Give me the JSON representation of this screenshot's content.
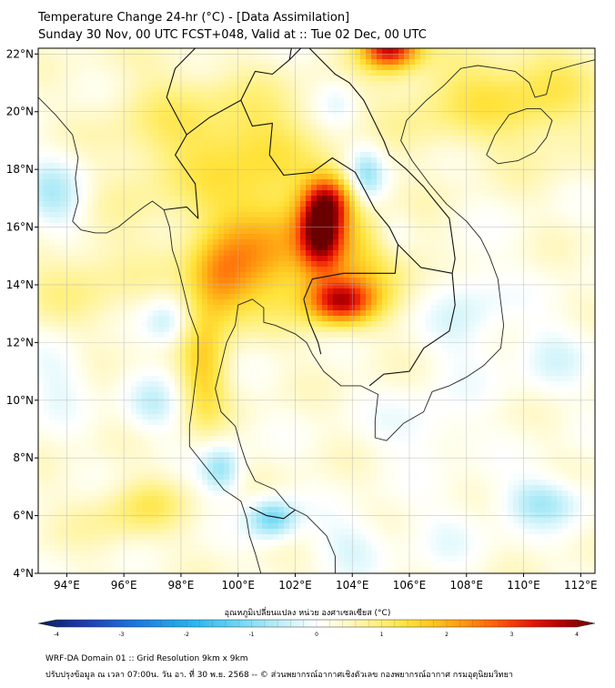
{
  "header": {
    "title": "Temperature Change 24-hr (°C) - [Data Assimilation]",
    "subtitle": "Sunday 30 Nov, 00 UTC FCST+048, Valid at :: Tue 02 Dec, 00 UTC"
  },
  "map": {
    "lon_range": [
      93,
      112.5
    ],
    "lat_range": [
      4,
      22.2
    ],
    "lon_ticks": [
      {
        "value": 94,
        "label": "94°E"
      },
      {
        "value": 96,
        "label": "96°E"
      },
      {
        "value": 98,
        "label": "98°E"
      },
      {
        "value": 100,
        "label": "100°E"
      },
      {
        "value": 102,
        "label": "102°E"
      },
      {
        "value": 104,
        "label": "104°E"
      },
      {
        "value": 106,
        "label": "106°E"
      },
      {
        "value": 108,
        "label": "108°E"
      },
      {
        "value": 110,
        "label": "110°E"
      },
      {
        "value": 112,
        "label": "112°E"
      }
    ],
    "lat_ticks": [
      {
        "value": 4,
        "label": "4°N"
      },
      {
        "value": 6,
        "label": "6°N"
      },
      {
        "value": 8,
        "label": "8°N"
      },
      {
        "value": 10,
        "label": "10°N"
      },
      {
        "value": 12,
        "label": "12°N"
      },
      {
        "value": 14,
        "label": "14°N"
      },
      {
        "value": 16,
        "label": "16°N"
      },
      {
        "value": 18,
        "label": "18°N"
      },
      {
        "value": 20,
        "label": "20°N"
      },
      {
        "value": 22,
        "label": "22°N"
      }
    ],
    "field_blobs": [
      {
        "lon": 102.9,
        "lat": 15.9,
        "val": 3.0,
        "sx": 0.55,
        "sy": 1.0
      },
      {
        "lon": 103.3,
        "lat": 17.0,
        "val": 1.6,
        "sx": 0.6,
        "sy": 0.6
      },
      {
        "lon": 103.6,
        "lat": 13.4,
        "val": 2.6,
        "sx": 0.8,
        "sy": 0.55
      },
      {
        "lon": 101.0,
        "lat": 15.3,
        "val": 1.6,
        "sx": 1.6,
        "sy": 1.5
      },
      {
        "lon": 99.3,
        "lat": 14.0,
        "val": 1.3,
        "sx": 0.8,
        "sy": 1.0
      },
      {
        "lon": 98.8,
        "lat": 11.0,
        "val": 1.2,
        "sx": 0.6,
        "sy": 1.4
      },
      {
        "lon": 105.3,
        "lat": 22.2,
        "val": 3.0,
        "sx": 0.7,
        "sy": 0.5
      },
      {
        "lon": 100.5,
        "lat": 19.0,
        "val": 0.9,
        "sx": 1.5,
        "sy": 1.3
      },
      {
        "lon": 104.5,
        "lat": 14.8,
        "val": 1.0,
        "sx": 1.3,
        "sy": 1.2
      },
      {
        "lon": 108.3,
        "lat": 20.5,
        "val": 0.8,
        "sx": 2.2,
        "sy": 1.3
      },
      {
        "lon": 97.5,
        "lat": 19.0,
        "val": 0.6,
        "sx": 1.6,
        "sy": 2.0
      },
      {
        "lon": 111.0,
        "lat": 20.5,
        "val": 0.5,
        "sx": 1.2,
        "sy": 1.5
      },
      {
        "lon": 94.5,
        "lat": 14.0,
        "val": 0.5,
        "sx": 1.5,
        "sy": 1.5
      },
      {
        "lon": 96.0,
        "lat": 6.0,
        "val": 0.5,
        "sx": 1.2,
        "sy": 0.8
      },
      {
        "lon": 104.5,
        "lat": 17.8,
        "val": -1.0,
        "sx": 0.45,
        "sy": 0.7
      },
      {
        "lon": 105.5,
        "lat": 15.8,
        "val": -0.5,
        "sx": 0.5,
        "sy": 0.6
      },
      {
        "lon": 101.2,
        "lat": 5.9,
        "val": -1.3,
        "sx": 0.6,
        "sy": 0.5
      },
      {
        "lon": 99.4,
        "lat": 7.6,
        "val": -1.0,
        "sx": 0.5,
        "sy": 0.6
      },
      {
        "lon": 97.5,
        "lat": 12.7,
        "val": -0.8,
        "sx": 0.6,
        "sy": 0.6
      },
      {
        "lon": 97.0,
        "lat": 9.8,
        "val": -0.6,
        "sx": 0.7,
        "sy": 0.7
      },
      {
        "lon": 93.6,
        "lat": 17.0,
        "val": -0.8,
        "sx": 0.8,
        "sy": 1.0
      },
      {
        "lon": 93.8,
        "lat": 11.0,
        "val": -0.5,
        "sx": 0.8,
        "sy": 1.0
      },
      {
        "lon": 110.7,
        "lat": 6.5,
        "val": -0.9,
        "sx": 1.0,
        "sy": 0.6
      },
      {
        "lon": 108.0,
        "lat": 13.0,
        "val": -0.5,
        "sx": 1.0,
        "sy": 1.5
      },
      {
        "lon": 106.5,
        "lat": 9.0,
        "val": -0.4,
        "sx": 1.2,
        "sy": 0.8
      },
      {
        "lon": 111.0,
        "lat": 11.5,
        "val": -0.4,
        "sx": 1.0,
        "sy": 1.0
      },
      {
        "lon": 104.0,
        "lat": 5.0,
        "val": -0.5,
        "sx": 1.0,
        "sy": 0.7
      },
      {
        "lon": 107.5,
        "lat": 5.5,
        "val": -0.3,
        "sx": 1.0,
        "sy": 0.8
      },
      {
        "lon": 103.5,
        "lat": 20.3,
        "val": -0.4,
        "sx": 0.5,
        "sy": 0.6
      },
      {
        "lon": 97.0,
        "lat": 6.5,
        "val": 0.4,
        "sx": 0.8,
        "sy": 0.6
      }
    ],
    "coastlines": [
      [
        [
          93,
          20.5
        ],
        [
          93.6,
          19.9
        ],
        [
          94.2,
          19.2
        ],
        [
          94.4,
          18.4
        ],
        [
          94.3,
          17.7
        ],
        [
          94.4,
          16.9
        ],
        [
          94.2,
          16.2
        ],
        [
          94.5,
          15.9
        ],
        [
          95.0,
          15.8
        ],
        [
          95.4,
          15.8
        ],
        [
          95.8,
          16.0
        ],
        [
          96.3,
          16.4
        ],
        [
          96.7,
          16.7
        ],
        [
          97.0,
          16.9
        ],
        [
          97.4,
          16.6
        ],
        [
          97.6,
          16.0
        ],
        [
          97.7,
          15.2
        ],
        [
          97.9,
          14.6
        ],
        [
          98.1,
          13.8
        ],
        [
          98.3,
          13.0
        ],
        [
          98.6,
          12.2
        ],
        [
          98.6,
          11.4
        ],
        [
          98.5,
          10.6
        ],
        [
          98.4,
          9.8
        ],
        [
          98.3,
          9.1
        ],
        [
          98.3,
          8.4
        ],
        [
          98.7,
          7.9
        ],
        [
          99.1,
          7.4
        ],
        [
          99.5,
          6.9
        ],
        [
          100.1,
          6.5
        ],
        [
          100.3,
          5.9
        ],
        [
          100.4,
          5.3
        ],
        [
          100.6,
          4.7
        ],
        [
          100.8,
          4.0
        ]
      ],
      [
        [
          103.4,
          4.0
        ],
        [
          103.4,
          4.6
        ],
        [
          103.1,
          5.3
        ],
        [
          102.4,
          6.0
        ],
        [
          101.8,
          6.3
        ],
        [
          101.3,
          6.9
        ],
        [
          100.6,
          7.2
        ],
        [
          100.3,
          7.8
        ],
        [
          100.1,
          8.4
        ],
        [
          99.9,
          9.1
        ],
        [
          99.4,
          9.6
        ],
        [
          99.2,
          10.4
        ],
        [
          99.4,
          11.2
        ],
        [
          99.6,
          12.0
        ],
        [
          99.9,
          12.6
        ],
        [
          100.0,
          13.3
        ],
        [
          100.5,
          13.5
        ],
        [
          100.9,
          13.2
        ],
        [
          100.9,
          12.7
        ],
        [
          101.3,
          12.6
        ],
        [
          102.0,
          12.3
        ],
        [
          102.4,
          12.0
        ],
        [
          102.6,
          11.6
        ],
        [
          103.0,
          11.0
        ],
        [
          103.6,
          10.5
        ],
        [
          104.3,
          10.5
        ],
        [
          104.9,
          10.2
        ],
        [
          104.8,
          9.3
        ],
        [
          104.8,
          8.7
        ],
        [
          105.2,
          8.6
        ],
        [
          105.8,
          9.2
        ],
        [
          106.5,
          9.6
        ],
        [
          106.8,
          10.3
        ],
        [
          107.4,
          10.5
        ],
        [
          108.0,
          10.8
        ],
        [
          108.6,
          11.2
        ],
        [
          109.2,
          11.8
        ],
        [
          109.3,
          12.6
        ],
        [
          109.2,
          13.4
        ],
        [
          109.1,
          14.2
        ],
        [
          108.8,
          15.0
        ],
        [
          108.5,
          15.6
        ],
        [
          108.0,
          16.2
        ],
        [
          107.3,
          16.8
        ],
        [
          106.7,
          17.5
        ],
        [
          106.1,
          18.3
        ],
        [
          105.7,
          19.0
        ],
        [
          105.9,
          19.7
        ],
        [
          106.6,
          20.4
        ],
        [
          107.2,
          20.9
        ],
        [
          107.8,
          21.5
        ],
        [
          108.4,
          21.6
        ],
        [
          109.1,
          21.5
        ],
        [
          109.7,
          21.4
        ],
        [
          110.2,
          21.0
        ],
        [
          110.4,
          20.5
        ],
        [
          110.8,
          20.6
        ],
        [
          111.0,
          21.4
        ],
        [
          111.7,
          21.6
        ],
        [
          112.5,
          21.8
        ]
      ],
      [
        [
          108.7,
          18.5
        ],
        [
          109.0,
          19.2
        ],
        [
          109.5,
          19.9
        ],
        [
          110.1,
          20.1
        ],
        [
          110.6,
          20.1
        ],
        [
          111.0,
          19.7
        ],
        [
          110.8,
          19.1
        ],
        [
          110.4,
          18.6
        ],
        [
          109.8,
          18.3
        ],
        [
          109.1,
          18.2
        ],
        [
          108.7,
          18.5
        ]
      ]
    ],
    "borders": [
      [
        [
          97.4,
          16.6
        ],
        [
          98.2,
          16.7
        ],
        [
          98.6,
          16.3
        ],
        [
          98.5,
          17.5
        ],
        [
          97.8,
          18.5
        ],
        [
          98.2,
          19.2
        ],
        [
          99.0,
          19.8
        ],
        [
          100.1,
          20.4
        ],
        [
          100.5,
          19.5
        ],
        [
          101.2,
          19.6
        ],
        [
          101.1,
          18.5
        ],
        [
          101.6,
          17.8
        ],
        [
          102.6,
          17.9
        ],
        [
          103.3,
          18.4
        ],
        [
          104.1,
          17.9
        ],
        [
          104.8,
          16.6
        ],
        [
          105.3,
          16.0
        ],
        [
          105.6,
          15.4
        ],
        [
          105.5,
          14.4
        ],
        [
          104.8,
          14.4
        ],
        [
          103.7,
          14.4
        ],
        [
          102.6,
          14.2
        ],
        [
          102.3,
          13.5
        ],
        [
          102.5,
          12.7
        ],
        [
          102.8,
          12.0
        ],
        [
          102.9,
          11.6
        ]
      ],
      [
        [
          100.1,
          20.4
        ],
        [
          100.6,
          21.4
        ],
        [
          101.2,
          21.3
        ],
        [
          101.8,
          21.8
        ],
        [
          102.2,
          22.2
        ]
      ],
      [
        [
          105.6,
          15.4
        ],
        [
          106.4,
          14.6
        ],
        [
          107.5,
          14.4
        ],
        [
          107.6,
          13.3
        ],
        [
          107.4,
          12.4
        ],
        [
          106.5,
          11.8
        ],
        [
          106.0,
          11.0
        ],
        [
          105.1,
          10.9
        ],
        [
          104.6,
          10.5
        ]
      ],
      [
        [
          104.3,
          22.2
        ],
        [
          104.6,
          22.8
        ],
        [
          105.6,
          22.9
        ]
      ],
      [
        [
          101.8,
          21.8
        ],
        [
          101.9,
          22.4
        ],
        [
          102.3,
          22.4
        ],
        [
          102.9,
          21.8
        ],
        [
          103.4,
          21.3
        ],
        [
          103.9,
          21.0
        ],
        [
          104.4,
          20.4
        ],
        [
          104.7,
          19.8
        ],
        [
          105.1,
          19.0
        ],
        [
          105.3,
          18.5
        ],
        [
          105.9,
          18.0
        ],
        [
          106.5,
          17.4
        ],
        [
          106.9,
          16.9
        ],
        [
          107.4,
          16.3
        ],
        [
          107.5,
          15.6
        ],
        [
          107.6,
          14.9
        ],
        [
          107.5,
          14.4
        ]
      ],
      [
        [
          100.4,
          6.3
        ],
        [
          101.0,
          6.0
        ],
        [
          101.6,
          5.9
        ],
        [
          102.0,
          6.2
        ]
      ],
      [
        [
          98.2,
          19.2
        ],
        [
          97.5,
          20.5
        ],
        [
          97.8,
          21.5
        ],
        [
          98.5,
          22.2
        ]
      ]
    ]
  },
  "colorbar": {
    "label": "อุณหภูมิเปลี่ยนแปลง หน่วย องศาเซลเซียส (°C)",
    "min": -4,
    "max": 4,
    "ticks": [
      {
        "value": -4,
        "label": "-4"
      },
      {
        "value": -3,
        "label": "-3"
      },
      {
        "value": -2,
        "label": "-2"
      },
      {
        "value": -1,
        "label": "-1"
      },
      {
        "value": 0,
        "label": "0"
      },
      {
        "value": 1,
        "label": "1"
      },
      {
        "value": 2,
        "label": "2"
      },
      {
        "value": 3,
        "label": "3"
      },
      {
        "value": 4,
        "label": "4"
      }
    ],
    "stops": [
      {
        "v": -4.0,
        "c": "#081d58"
      },
      {
        "v": -3.3,
        "c": "#1f3eb5"
      },
      {
        "v": -2.6,
        "c": "#1a78e0"
      },
      {
        "v": -1.8,
        "c": "#26b4f0"
      },
      {
        "v": -1.2,
        "c": "#62d4f5"
      },
      {
        "v": -0.6,
        "c": "#b4ecf8"
      },
      {
        "v": -0.15,
        "c": "#ecfbfd"
      },
      {
        "v": 0.0,
        "c": "#ffffff"
      },
      {
        "v": 0.15,
        "c": "#fffff0"
      },
      {
        "v": 0.45,
        "c": "#fff8c4"
      },
      {
        "v": 0.9,
        "c": "#fff07a"
      },
      {
        "v": 1.3,
        "c": "#ffe23a"
      },
      {
        "v": 1.7,
        "c": "#ffc21e"
      },
      {
        "v": 2.1,
        "c": "#ff9810"
      },
      {
        "v": 2.6,
        "c": "#ff5a08"
      },
      {
        "v": 3.1,
        "c": "#e81606"
      },
      {
        "v": 3.5,
        "c": "#b80000"
      },
      {
        "v": 4.0,
        "c": "#6a0000"
      }
    ]
  },
  "footer": {
    "line1": "WRF-DA Domain 01 :: Grid Resolution 9km x 9km",
    "line2": "ปรับปรุงข้อมูล ณ เวลา 07:00น. วัน อา. ที่ 30 พ.ย. 2568 -- © ส่วนพยากรณ์อากาศเชิงตัวเลข กองพยากรณ์อากาศ กรมอุตุนิยมวิทยา"
  }
}
